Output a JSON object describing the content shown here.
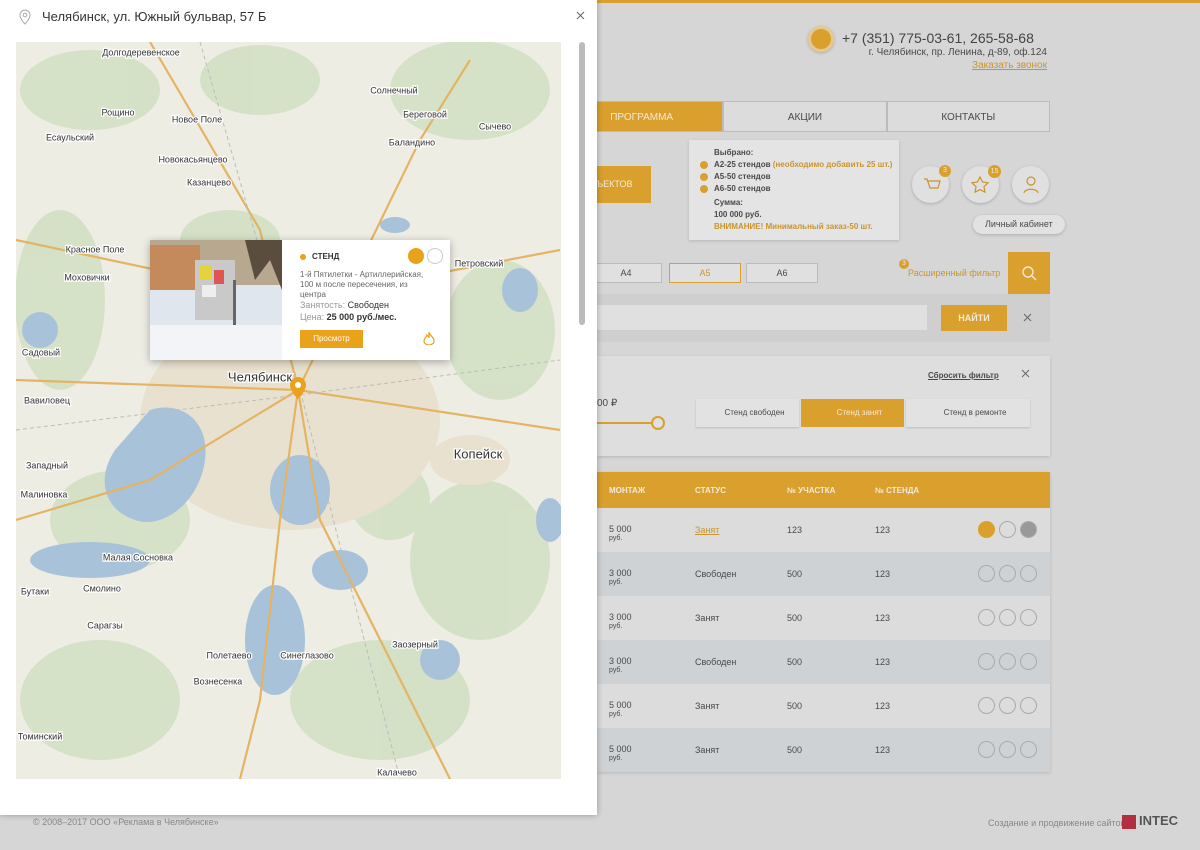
{
  "modal": {
    "address": "Челябинск, ул. Южный бульвар, 57 Б",
    "map_labels": [
      "Долгодеревенское",
      "Рощино",
      "Есаульский",
      "Новое Поле",
      "Солнечный",
      "Береговой",
      "Баландино",
      "Сычево",
      "Новокасьянцево",
      "Казанцево",
      "Красное Поле",
      "Петровский",
      "Моховички",
      "Садовый",
      "Вавиловец",
      "Челябинск",
      "Копейск",
      "Западный",
      "Малиновка",
      "Малая Сосновка",
      "Смолино",
      "Бутаки",
      "Сарагзы",
      "Полетаево",
      "Синеглазово",
      "Заозерный",
      "Вознесенка",
      "Томинский",
      "Калачево"
    ],
    "popup": {
      "type": "СТЕНД",
      "description": "1-й Пятилетки - Артиллерийская, 100 м после пересечения, из центра",
      "occupancy_label": "Занятость:",
      "occupancy": "Свободен",
      "price_label": "Цена:",
      "price": "25 000 руб./мес.",
      "button": "Просмотр"
    }
  },
  "header": {
    "phone": "+7 (351) 775-03-61, 265-58-68",
    "address": "г. Челябинск, пр. Ленина, д-89, оф.124",
    "callback": "Заказать звонок"
  },
  "nav": [
    "ПРОГРАММА",
    "АКЦИИ",
    "КОНТАКТЫ"
  ],
  "objects_button": "ЪЕКТОВ",
  "cart": {
    "title": "Выбрано:",
    "items": [
      {
        "name": "А2-25 стендов",
        "note": "(необходимо добавить 25 шт.)"
      },
      {
        "name": "А5-50 стендов"
      },
      {
        "name": "А6-50 стендов"
      }
    ],
    "sum_label": "Сумма:",
    "sum": "100 000 руб.",
    "warning": "ВНИМАНИЕ! Минимальный заказ-50 шт."
  },
  "badges": {
    "cart": 3,
    "favorites": 15
  },
  "account": "Личный кабинет",
  "formats": [
    "А4",
    "А5",
    "А6"
  ],
  "filter": {
    "badge": 3,
    "label": "Расширенный фильтр",
    "search_button": "НАЙТИ",
    "reset": "Сбросить фильтр",
    "price": "00 ₽",
    "statuses": [
      "Стенд свободен",
      "Стенд занят",
      "Стенд в ремонте"
    ]
  },
  "table": {
    "headers": [
      "МОНТАЖ",
      "СТАТУС",
      "№ УЧАСТКА",
      "№ СТЕНДА"
    ],
    "rows": [
      [
        "5 000",
        "руб.",
        "Занят",
        "123",
        "123"
      ],
      [
        "3 000",
        "руб.",
        "Свободен",
        "500",
        "123"
      ],
      [
        "3 000",
        "руб.",
        "Занят",
        "500",
        "123"
      ],
      [
        "3 000",
        "руб.",
        "Свободен",
        "500",
        "123"
      ],
      [
        "5 000",
        "руб.",
        "Занят",
        "500",
        "123"
      ],
      [
        "5 000",
        "руб.",
        "Занят",
        "500",
        "123"
      ]
    ]
  },
  "footer": {
    "copyright": "© 2008–2017 ООО «Реклама в Челябинске»",
    "credit": "Создание и продвижение сайтов",
    "brand": "INTEC"
  }
}
